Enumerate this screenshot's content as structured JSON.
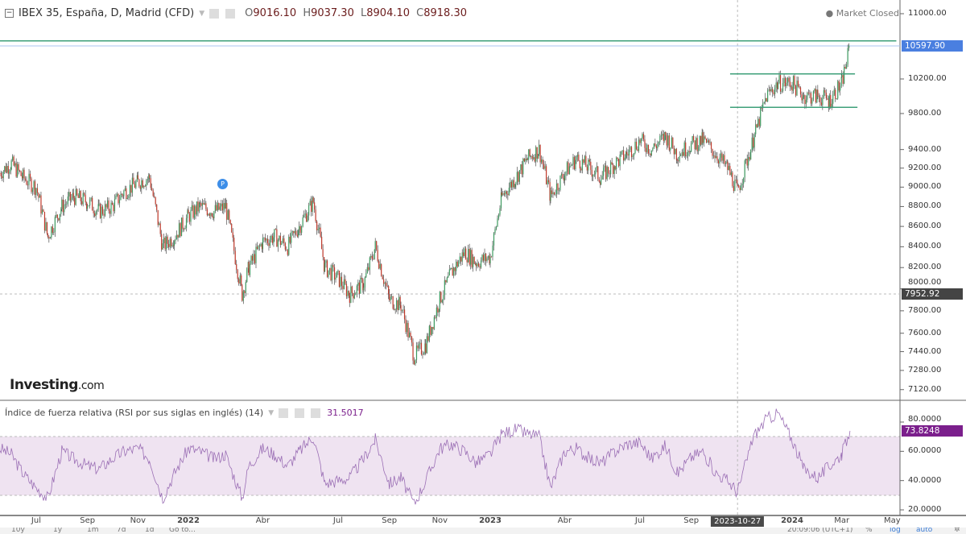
{
  "header": {
    "title": "IBEX 35, España, D, Madrid (CFD)",
    "open_label": "O",
    "open": "9016.10",
    "high_label": "H",
    "high": "9037.30",
    "low_label": "L",
    "low": "8904.10",
    "close_label": "C",
    "close": "8918.30",
    "market_status": "Market Closed"
  },
  "rsi_header": {
    "title": "Índice de fuerza relativa (RSI por sus siglas en inglés) (14)",
    "value": "31.5017"
  },
  "logo": {
    "brand": "Investing",
    "suffix": ".com"
  },
  "marker": {
    "label": "P"
  },
  "toolbar": {
    "left": [
      "10y",
      "1y",
      "1m",
      "7d",
      "1d",
      "Go to..."
    ],
    "right": [
      "20:09:06 (UTC+1)",
      "%",
      "log",
      "auto"
    ]
  },
  "colors": {
    "up": "#3c9a5f",
    "down": "#c0392b",
    "trendline": "#3fa07a",
    "rsi_line": "#9b6fb5",
    "rsi_band": "#efe3f1",
    "last_price_tag": "#4a7fe0",
    "rsi_tag": "#7b1f8c"
  },
  "chart_data": [
    {
      "type": "candlestick",
      "title": "IBEX 35, España, D, Madrid (CFD)",
      "y_scale": "log",
      "ylim": [
        7040,
        11150
      ],
      "y_ticks": [
        "11000.00",
        "10200.00",
        "9800.00",
        "9400.00",
        "9200.00",
        "9000.00",
        "8800.00",
        "8600.00",
        "8400.00",
        "8200.00",
        "8000.00",
        "7800.00",
        "7600.00",
        "7440.00",
        "7280.00",
        "7120.00"
      ],
      "x_ticks": [
        {
          "label": "Jul",
          "date": "2021-07-01"
        },
        {
          "label": "Sep",
          "date": "2021-09-01"
        },
        {
          "label": "Nov",
          "date": "2021-11-01"
        },
        {
          "label": "2022",
          "date": "2022-01-01",
          "bold": true
        },
        {
          "label": "Abr",
          "date": "2022-04-01"
        },
        {
          "label": "Jul",
          "date": "2022-07-01"
        },
        {
          "label": "Sep",
          "date": "2022-09-01"
        },
        {
          "label": "Nov",
          "date": "2022-11-01"
        },
        {
          "label": "2023",
          "date": "2023-01-01",
          "bold": true
        },
        {
          "label": "Abr",
          "date": "2023-04-01"
        },
        {
          "label": "Jul",
          "date": "2023-07-01"
        },
        {
          "label": "Sep",
          "date": "2023-09-01"
        },
        {
          "label": "2023-10-27",
          "date": "2023-10-27",
          "highlight": true
        },
        {
          "label": "2024",
          "date": "2024-01-01",
          "bold": true
        },
        {
          "label": "Mar",
          "date": "2024-03-01"
        },
        {
          "label": "May",
          "date": "2024-05-01"
        }
      ],
      "last_price": "10597.90",
      "crosshair_price": "7952.92",
      "crosshair_date": "2023-10-27",
      "trendlines": [
        {
          "price": 10660,
          "from": "2021-05-18",
          "to": "2024-05-06"
        },
        {
          "price": 10260,
          "from": "2023-10-18",
          "to": "2024-03-17"
        },
        {
          "price": 9870,
          "from": "2023-10-18",
          "to": "2024-03-20"
        }
      ],
      "closes": [
        [
          "2021-05-18",
          9150
        ],
        [
          "2021-06-01",
          9250
        ],
        [
          "2021-06-15",
          9100
        ],
        [
          "2021-07-01",
          9000
        ],
        [
          "2021-07-15",
          8500
        ],
        [
          "2021-08-01",
          8800
        ],
        [
          "2021-08-15",
          8900
        ],
        [
          "2021-09-01",
          8850
        ],
        [
          "2021-09-15",
          8750
        ],
        [
          "2021-10-01",
          8800
        ],
        [
          "2021-10-15",
          8950
        ],
        [
          "2021-11-01",
          9050
        ],
        [
          "2021-11-15",
          9100
        ],
        [
          "2021-12-01",
          8400
        ],
        [
          "2021-12-15",
          8500
        ],
        [
          "2022-01-01",
          8700
        ],
        [
          "2022-01-15",
          8800
        ],
        [
          "2022-02-01",
          8750
        ],
        [
          "2022-02-15",
          8800
        ],
        [
          "2022-03-07",
          7950
        ],
        [
          "2022-03-15",
          8200
        ],
        [
          "2022-04-01",
          8450
        ],
        [
          "2022-04-15",
          8500
        ],
        [
          "2022-05-01",
          8400
        ],
        [
          "2022-05-15",
          8600
        ],
        [
          "2022-06-01",
          8850
        ],
        [
          "2022-06-15",
          8200
        ],
        [
          "2022-07-01",
          8100
        ],
        [
          "2022-07-15",
          7950
        ],
        [
          "2022-08-01",
          8050
        ],
        [
          "2022-08-15",
          8400
        ],
        [
          "2022-09-01",
          7900
        ],
        [
          "2022-09-15",
          7850
        ],
        [
          "2022-10-01",
          7400
        ],
        [
          "2022-10-15",
          7500
        ],
        [
          "2022-11-01",
          7900
        ],
        [
          "2022-11-15",
          8150
        ],
        [
          "2022-12-01",
          8350
        ],
        [
          "2022-12-15",
          8250
        ],
        [
          "2023-01-01",
          8300
        ],
        [
          "2023-01-15",
          8900
        ],
        [
          "2023-02-01",
          9100
        ],
        [
          "2023-02-15",
          9300
        ],
        [
          "2023-03-01",
          9400
        ],
        [
          "2023-03-15",
          8900
        ],
        [
          "2023-04-01",
          9150
        ],
        [
          "2023-04-15",
          9300
        ],
        [
          "2023-05-01",
          9200
        ],
        [
          "2023-05-15",
          9100
        ],
        [
          "2023-06-01",
          9250
        ],
        [
          "2023-06-15",
          9350
        ],
        [
          "2023-07-01",
          9500
        ],
        [
          "2023-07-15",
          9400
        ],
        [
          "2023-08-01",
          9550
        ],
        [
          "2023-08-15",
          9350
        ],
        [
          "2023-09-01",
          9450
        ],
        [
          "2023-09-15",
          9500
        ],
        [
          "2023-10-01",
          9350
        ],
        [
          "2023-10-15",
          9200
        ],
        [
          "2023-10-27",
          8950
        ],
        [
          "2023-11-15",
          9500
        ],
        [
          "2023-12-01",
          10000
        ],
        [
          "2023-12-15",
          10150
        ],
        [
          "2024-01-01",
          10150
        ],
        [
          "2024-01-15",
          10000
        ],
        [
          "2024-02-01",
          10000
        ],
        [
          "2024-02-15",
          9950
        ],
        [
          "2024-03-01",
          10150
        ],
        [
          "2024-03-11",
          10600
        ]
      ]
    },
    {
      "type": "line",
      "title": "Índice de fuerza relativa (RSI por sus siglas en inglés) (14)",
      "ylim": [
        15,
        90
      ],
      "y_ticks": [
        "80.0000",
        "60.0000",
        "40.0000",
        "20.0000"
      ],
      "bands": [
        30,
        70
      ],
      "last_value": "73.8248",
      "values": [
        [
          "2021-05-18",
          62
        ],
        [
          "2021-06-01",
          58
        ],
        [
          "2021-06-15",
          45
        ],
        [
          "2021-07-01",
          35
        ],
        [
          "2021-07-15",
          28
        ],
        [
          "2021-08-01",
          60
        ],
        [
          "2021-08-15",
          55
        ],
        [
          "2021-09-01",
          50
        ],
        [
          "2021-09-15",
          48
        ],
        [
          "2021-10-01",
          55
        ],
        [
          "2021-10-15",
          60
        ],
        [
          "2021-11-01",
          62
        ],
        [
          "2021-11-15",
          55
        ],
        [
          "2021-12-01",
          28
        ],
        [
          "2021-12-15",
          45
        ],
        [
          "2022-01-01",
          62
        ],
        [
          "2022-01-15",
          60
        ],
        [
          "2022-02-01",
          55
        ],
        [
          "2022-02-15",
          58
        ],
        [
          "2022-03-07",
          28
        ],
        [
          "2022-03-15",
          50
        ],
        [
          "2022-04-01",
          62
        ],
        [
          "2022-04-15",
          58
        ],
        [
          "2022-05-01",
          50
        ],
        [
          "2022-05-15",
          60
        ],
        [
          "2022-06-01",
          70
        ],
        [
          "2022-06-15",
          38
        ],
        [
          "2022-07-01",
          40
        ],
        [
          "2022-07-15",
          42
        ],
        [
          "2022-08-01",
          55
        ],
        [
          "2022-08-15",
          68
        ],
        [
          "2022-09-01",
          38
        ],
        [
          "2022-09-15",
          42
        ],
        [
          "2022-10-01",
          24
        ],
        [
          "2022-10-15",
          40
        ],
        [
          "2022-11-01",
          62
        ],
        [
          "2022-11-15",
          65
        ],
        [
          "2022-12-01",
          60
        ],
        [
          "2022-12-15",
          52
        ],
        [
          "2023-01-01",
          58
        ],
        [
          "2023-01-15",
          72
        ],
        [
          "2023-02-01",
          75
        ],
        [
          "2023-02-15",
          72
        ],
        [
          "2023-03-01",
          70
        ],
        [
          "2023-03-15",
          35
        ],
        [
          "2023-04-01",
          60
        ],
        [
          "2023-04-15",
          62
        ],
        [
          "2023-05-01",
          55
        ],
        [
          "2023-05-15",
          52
        ],
        [
          "2023-06-01",
          60
        ],
        [
          "2023-06-15",
          65
        ],
        [
          "2023-07-01",
          66
        ],
        [
          "2023-07-15",
          55
        ],
        [
          "2023-08-01",
          64
        ],
        [
          "2023-08-15",
          45
        ],
        [
          "2023-09-01",
          56
        ],
        [
          "2023-09-15",
          60
        ],
        [
          "2023-10-01",
          45
        ],
        [
          "2023-10-15",
          40
        ],
        [
          "2023-10-27",
          32
        ],
        [
          "2023-11-15",
          70
        ],
        [
          "2023-12-01",
          82
        ],
        [
          "2023-12-15",
          86
        ],
        [
          "2024-01-01",
          68
        ],
        [
          "2024-01-15",
          48
        ],
        [
          "2024-02-01",
          42
        ],
        [
          "2024-02-15",
          50
        ],
        [
          "2024-03-01",
          58
        ],
        [
          "2024-03-11",
          74
        ]
      ]
    }
  ]
}
